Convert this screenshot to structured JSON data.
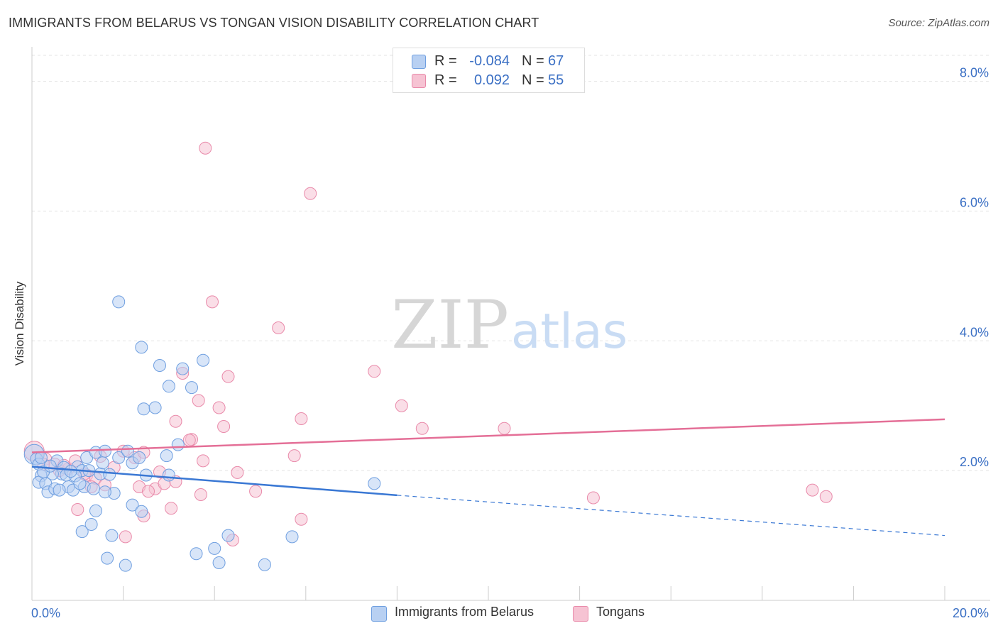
{
  "header": {
    "title": "IMMIGRANTS FROM BELARUS VS TONGAN VISION DISABILITY CORRELATION CHART",
    "source": "Source: ZipAtlas.com"
  },
  "watermark": {
    "zip": "ZIP",
    "atlas": "atlas"
  },
  "legend_top": [
    {
      "r_label": "R =",
      "r_value": "-0.084",
      "n_label": "N =",
      "n_value": "67"
    },
    {
      "r_label": "R =",
      "r_value": "0.092",
      "n_label": "N =",
      "n_value": "55"
    }
  ],
  "legend_bottom": [
    {
      "label": "Immigrants from Belarus"
    },
    {
      "label": "Tongans"
    }
  ],
  "colors": {
    "blue_fill": "#b8d0f2",
    "blue_stroke": "#6f9fe0",
    "blue_line": "#3a78d4",
    "pink_fill": "#f6c3d3",
    "pink_stroke": "#e98aaa",
    "pink_line": "#e46f97",
    "tick_label": "#3a6fc4"
  },
  "chart_data": {
    "type": "scatter",
    "title": "IMMIGRANTS FROM BELARUS VS TONGAN VISION DISABILITY CORRELATION CHART",
    "xlabel": "",
    "ylabel": "Vision Disability",
    "xlim": [
      0,
      20
    ],
    "ylim": [
      0,
      8.4
    ],
    "x_tick_labels": [
      "0.0%",
      "20.0%"
    ],
    "y_ticks": [
      2,
      4,
      6,
      8
    ],
    "y_tick_labels": [
      "2.0%",
      "4.0%",
      "6.0%",
      "8.0%"
    ],
    "grid": true,
    "legend_position": "top-center",
    "series": [
      {
        "name": "Immigrants from Belarus",
        "r": -0.084,
        "n": 67,
        "trend": {
          "x0": 0,
          "y0": 2.06,
          "x1": 8,
          "y1": 1.62,
          "dashed_to_x": 20,
          "dashed_to_y": 1.0
        },
        "points": [
          [
            0.05,
            2.25
          ],
          [
            0.1,
            2.18
          ],
          [
            0.15,
            2.1
          ],
          [
            0.2,
            1.92
          ],
          [
            0.15,
            1.82
          ],
          [
            0.3,
            1.8
          ],
          [
            0.35,
            1.67
          ],
          [
            0.5,
            1.72
          ],
          [
            0.55,
            2.15
          ],
          [
            0.7,
            2.05
          ],
          [
            0.65,
            1.95
          ],
          [
            0.8,
            1.75
          ],
          [
            0.9,
            1.7
          ],
          [
            1.0,
            2.06
          ],
          [
            1.1,
            2.0
          ],
          [
            1.15,
            1.75
          ],
          [
            1.2,
            2.2
          ],
          [
            1.35,
            1.72
          ],
          [
            1.4,
            2.28
          ],
          [
            1.5,
            1.95
          ],
          [
            1.55,
            2.12
          ],
          [
            1.7,
            1.94
          ],
          [
            1.8,
            1.65
          ],
          [
            1.9,
            2.2
          ],
          [
            2.1,
            2.3
          ],
          [
            2.2,
            2.12
          ],
          [
            2.5,
            1.93
          ],
          [
            1.6,
            2.3
          ],
          [
            1.9,
            4.6
          ],
          [
            2.4,
            3.9
          ],
          [
            2.8,
            3.62
          ],
          [
            3.3,
            3.57
          ],
          [
            3.5,
            3.28
          ],
          [
            3.75,
            3.7
          ],
          [
            2.45,
            2.95
          ],
          [
            2.7,
            2.97
          ],
          [
            3.0,
            3.3
          ],
          [
            3.2,
            2.4
          ],
          [
            3.0,
            1.93
          ],
          [
            1.6,
            1.67
          ],
          [
            1.4,
            1.38
          ],
          [
            2.2,
            1.47
          ],
          [
            2.4,
            1.37
          ],
          [
            1.1,
            1.06
          ],
          [
            1.3,
            1.17
          ],
          [
            1.75,
            1.0
          ],
          [
            3.6,
            0.72
          ],
          [
            4.0,
            0.8
          ],
          [
            4.3,
            1.0
          ],
          [
            5.1,
            0.55
          ],
          [
            4.1,
            0.58
          ],
          [
            1.65,
            0.65
          ],
          [
            2.05,
            0.54
          ],
          [
            5.7,
            0.98
          ],
          [
            7.5,
            1.8
          ],
          [
            0.45,
            1.95
          ],
          [
            0.6,
            1.7
          ],
          [
            0.75,
            1.93
          ],
          [
            0.25,
            1.98
          ],
          [
            0.4,
            2.07
          ],
          [
            0.95,
            1.92
          ],
          [
            2.95,
            2.23
          ],
          [
            1.05,
            1.8
          ],
          [
            0.2,
            2.2
          ],
          [
            0.85,
            1.99
          ],
          [
            1.25,
            2.0
          ],
          [
            2.35,
            2.2
          ]
        ]
      },
      {
        "name": "Tongans",
        "r": 0.092,
        "n": 55,
        "trend": {
          "x0": 0,
          "y0": 2.28,
          "x1": 20,
          "y1": 2.79
        },
        "points": [
          [
            0.05,
            2.3
          ],
          [
            0.3,
            2.18
          ],
          [
            0.5,
            2.1
          ],
          [
            0.8,
            2.03
          ],
          [
            0.95,
            2.15
          ],
          [
            1.2,
            1.93
          ],
          [
            1.4,
            1.88
          ],
          [
            1.6,
            1.78
          ],
          [
            1.8,
            2.05
          ],
          [
            2.0,
            2.3
          ],
          [
            2.25,
            2.2
          ],
          [
            1.5,
            2.22
          ],
          [
            2.35,
            1.75
          ],
          [
            2.7,
            1.72
          ],
          [
            2.9,
            1.8
          ],
          [
            3.15,
            1.83
          ],
          [
            3.05,
            1.42
          ],
          [
            2.8,
            1.98
          ],
          [
            3.5,
            2.48
          ],
          [
            3.75,
            2.15
          ],
          [
            3.15,
            2.76
          ],
          [
            2.45,
            1.3
          ],
          [
            2.05,
            0.98
          ],
          [
            3.3,
            3.5
          ],
          [
            3.45,
            2.47
          ],
          [
            3.7,
            1.63
          ],
          [
            3.65,
            3.08
          ],
          [
            3.95,
            4.6
          ],
          [
            4.1,
            2.97
          ],
          [
            4.2,
            2.68
          ],
          [
            4.3,
            3.45
          ],
          [
            3.8,
            6.97
          ],
          [
            6.1,
            6.27
          ],
          [
            5.4,
            4.2
          ],
          [
            4.5,
            1.97
          ],
          [
            4.9,
            1.68
          ],
          [
            5.75,
            2.23
          ],
          [
            5.9,
            2.8
          ],
          [
            5.9,
            1.25
          ],
          [
            4.4,
            0.93
          ],
          [
            7.5,
            3.53
          ],
          [
            8.1,
            3.0
          ],
          [
            8.55,
            2.65
          ],
          [
            10.35,
            2.65
          ],
          [
            12.3,
            1.58
          ],
          [
            17.1,
            1.7
          ],
          [
            17.4,
            1.6
          ],
          [
            1.0,
            1.4
          ],
          [
            0.25,
            2.1
          ],
          [
            0.6,
            2.0
          ],
          [
            1.15,
            1.95
          ],
          [
            1.3,
            1.75
          ],
          [
            2.45,
            2.28
          ],
          [
            2.55,
            1.68
          ],
          [
            0.7,
            2.08
          ]
        ]
      }
    ]
  }
}
